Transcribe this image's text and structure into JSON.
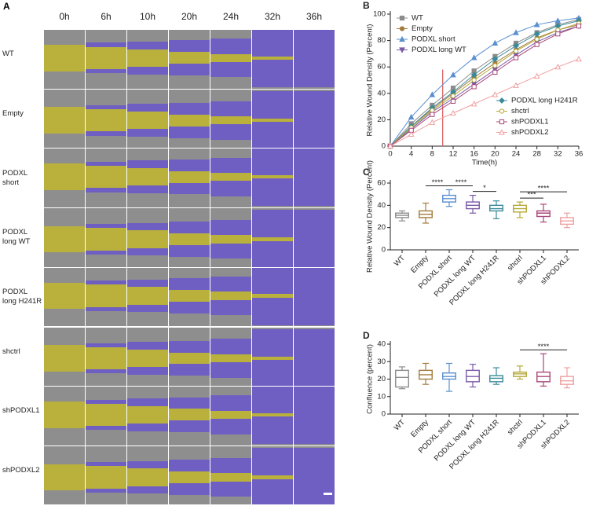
{
  "panel_a": {
    "label": "A",
    "columns": [
      "0h",
      "6h",
      "10h",
      "20h",
      "24h",
      "32h",
      "36h"
    ],
    "rows": [
      "WT",
      "Empty",
      "PODXL short",
      "PODXL long WT",
      "PODXL long H241R",
      "shctrl",
      "shPODXL1",
      "shPODXL2"
    ]
  },
  "chart_data": [
    {
      "type": "line",
      "panel_label": "B",
      "x_label": "Time(h)",
      "y_label": "Relative Wound Density (Percent)",
      "x": [
        0,
        4,
        8,
        12,
        16,
        20,
        24,
        28,
        32,
        36
      ],
      "xlim": [
        0,
        36
      ],
      "xticks": [
        0,
        4,
        8,
        12,
        16,
        20,
        24,
        28,
        32,
        36
      ],
      "ylim": [
        0,
        100
      ],
      "yticks": [
        0,
        20,
        40,
        60,
        80,
        100
      ],
      "legend": [
        "upper left",
        "lower right"
      ],
      "vline": {
        "x": 10,
        "color": "#e06666"
      },
      "series": [
        {
          "name": "WT",
          "color": "#8c8c8c",
          "marker": "square",
          "filled": true,
          "values": [
            0,
            17,
            31,
            44,
            57,
            68,
            78,
            86,
            92,
            96
          ]
        },
        {
          "name": "Empty",
          "color": "#a37b3c",
          "marker": "circle",
          "filled": true,
          "values": [
            0,
            15,
            28,
            40,
            52,
            63,
            73,
            82,
            88,
            92
          ]
        },
        {
          "name": "PODXL short",
          "color": "#5b8fd0",
          "marker": "triangle",
          "filled": true,
          "values": [
            0,
            22,
            39,
            54,
            67,
            78,
            86,
            92,
            95,
            97
          ]
        },
        {
          "name": "PODXL long WT",
          "color": "#7a5aa8",
          "marker": "triangle-down",
          "filled": true,
          "values": [
            0,
            13,
            26,
            36,
            47,
            58,
            69,
            79,
            86,
            91
          ]
        },
        {
          "name": "PODXL long H241R",
          "color": "#3a8a9a",
          "marker": "diamond",
          "filled": true,
          "values": [
            0,
            15,
            29,
            41,
            54,
            66,
            76,
            85,
            91,
            95
          ]
        },
        {
          "name": "shctrl",
          "color": "#b5a93a",
          "marker": "circle",
          "filled": false,
          "values": [
            0,
            14,
            27,
            38,
            50,
            61,
            72,
            81,
            88,
            93
          ]
        },
        {
          "name": "shPODXL1",
          "color": "#a8467a",
          "marker": "square",
          "filled": false,
          "values": [
            0,
            12,
            24,
            34,
            45,
            56,
            67,
            77,
            85,
            91
          ]
        },
        {
          "name": "shPODXL2",
          "color": "#f0a0a0",
          "marker": "triangle",
          "filled": false,
          "values": [
            0,
            9,
            18,
            25,
            32,
            39,
            46,
            53,
            60,
            66
          ]
        }
      ]
    },
    {
      "type": "box",
      "panel_label": "C",
      "y_label": "Relative Wound Density (Percent)",
      "categories": [
        "WT",
        "Empty",
        "PODXL short",
        "PODXL long WT",
        "PODXL long H241R",
        "shctrl",
        "shPODXL1",
        "shPODXL2"
      ],
      "colors": [
        "#8c8c8c",
        "#a37b3c",
        "#5b8fd0",
        "#7a5aa8",
        "#3a8a9a",
        "#b5a93a",
        "#a8467a",
        "#f0a0a0"
      ],
      "ylim": [
        0,
        60
      ],
      "yticks": [
        0,
        20,
        40,
        60
      ],
      "boxes": [
        {
          "min": 26,
          "q1": 29,
          "median": 31,
          "q3": 33,
          "max": 35
        },
        {
          "min": 24,
          "q1": 29,
          "median": 32,
          "q3": 35,
          "max": 42
        },
        {
          "min": 39,
          "q1": 43,
          "median": 46,
          "q3": 49,
          "max": 54
        },
        {
          "min": 33,
          "q1": 37,
          "median": 40,
          "q3": 43,
          "max": 49
        },
        {
          "min": 28,
          "q1": 35,
          "median": 37,
          "q3": 40,
          "max": 44
        },
        {
          "min": 29,
          "q1": 34,
          "median": 37,
          "q3": 40,
          "max": 43
        },
        {
          "min": 25,
          "q1": 30,
          "median": 33,
          "q3": 35,
          "max": 41
        },
        {
          "min": 20,
          "q1": 23,
          "median": 26,
          "q3": 29,
          "max": 33
        }
      ],
      "significance": [
        {
          "between": [
            1,
            2
          ],
          "label": "****"
        },
        {
          "between": [
            2,
            3
          ],
          "label": "****"
        },
        {
          "between": [
            3,
            4
          ],
          "label": "*"
        },
        {
          "between": [
            5,
            6
          ],
          "label": "***"
        },
        {
          "between": [
            5,
            7
          ],
          "label": "****"
        }
      ]
    },
    {
      "type": "box",
      "panel_label": "D",
      "y_label": "Confluence (percent)",
      "categories": [
        "WT",
        "Empty",
        "PODXL short",
        "PODXL long WT",
        "PODXL long H241R",
        "shctrl",
        "shPODXL1",
        "shPODXL2"
      ],
      "colors": [
        "#8c8c8c",
        "#a37b3c",
        "#5b8fd0",
        "#7a5aa8",
        "#3a8a9a",
        "#b5a93a",
        "#a8467a",
        "#f0a0a0"
      ],
      "ylim": [
        0,
        40
      ],
      "yticks": [
        0,
        10,
        20,
        30,
        40
      ],
      "boxes": [
        {
          "min": 14.5,
          "q1": 15.5,
          "median": 21,
          "q3": 25,
          "max": 27
        },
        {
          "min": 17,
          "q1": 20,
          "median": 22.5,
          "q3": 25,
          "max": 29
        },
        {
          "min": 13,
          "q1": 20,
          "median": 21.5,
          "q3": 23.5,
          "max": 29
        },
        {
          "min": 15.5,
          "q1": 18.5,
          "median": 21.5,
          "q3": 25,
          "max": 28.5
        },
        {
          "min": 17,
          "q1": 18.5,
          "median": 20.5,
          "q3": 22,
          "max": 26.5
        },
        {
          "min": 20,
          "q1": 21.5,
          "median": 23,
          "q3": 24,
          "max": 27.5
        },
        {
          "min": 16,
          "q1": 18.5,
          "median": 21.5,
          "q3": 24,
          "max": 34.5
        },
        {
          "min": 15,
          "q1": 17,
          "median": 19,
          "q3": 21.5,
          "max": 26.5
        }
      ],
      "significance": [
        {
          "between": [
            5,
            7
          ],
          "label": "****"
        }
      ]
    }
  ]
}
